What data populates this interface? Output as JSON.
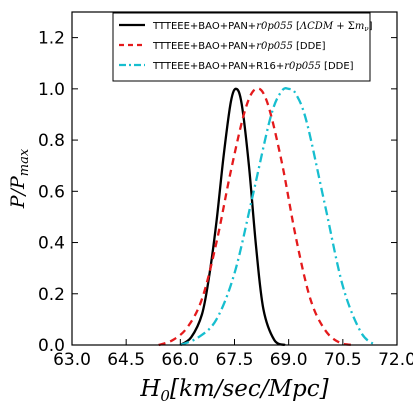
{
  "chart_data": {
    "type": "line",
    "xlabel": "H_0[km/sec/Mpc]",
    "ylabel": "P/P_max",
    "xlim": [
      63.0,
      72.0
    ],
    "ylim": [
      0.0,
      1.3
    ],
    "xticks": [
      "63.0",
      "64.5",
      "66.0",
      "67.5",
      "69.0",
      "70.5",
      "72.0"
    ],
    "yticks": [
      "0.0",
      "0.2",
      "0.4",
      "0.6",
      "0.8",
      "1.0",
      "1.2"
    ],
    "grid": false,
    "legend_position": "top-right",
    "series": [
      {
        "name": "TTTEEE+BAO+PAN+r0p055 [ΛCDM+Σm_ν]",
        "color": "#000000",
        "dash": "solid",
        "x": [
          66.0,
          66.3,
          66.6,
          66.8,
          67.0,
          67.2,
          67.4,
          67.55,
          67.7,
          67.9,
          68.1,
          68.3,
          68.6,
          68.9
        ],
        "y": [
          0.0,
          0.03,
          0.12,
          0.27,
          0.48,
          0.74,
          0.95,
          1.0,
          0.94,
          0.7,
          0.38,
          0.14,
          0.02,
          0.0
        ]
      },
      {
        "name": "TTTEEE+BAO+PAN+r0p055 [DDE]",
        "color": "#e41a1c",
        "dash": "dashed",
        "x": [
          65.4,
          65.8,
          66.2,
          66.6,
          67.0,
          67.4,
          67.8,
          68.1,
          68.4,
          68.8,
          69.2,
          69.6,
          70.0,
          70.4,
          70.8
        ],
        "y": [
          0.0,
          0.02,
          0.07,
          0.18,
          0.4,
          0.68,
          0.92,
          1.0,
          0.95,
          0.72,
          0.42,
          0.18,
          0.06,
          0.01,
          0.0
        ]
      },
      {
        "name": "TTTEEE+BAO+PAN+R16+r0p055 [DDE]",
        "color": "#17becf",
        "dash": "dashdot",
        "x": [
          66.0,
          66.5,
          67.0,
          67.5,
          68.0,
          68.5,
          68.8,
          69.0,
          69.2,
          69.5,
          70.0,
          70.5,
          71.0,
          71.4
        ],
        "y": [
          0.0,
          0.03,
          0.1,
          0.28,
          0.58,
          0.89,
          0.99,
          1.0,
          0.98,
          0.87,
          0.55,
          0.23,
          0.05,
          0.0
        ]
      }
    ]
  }
}
